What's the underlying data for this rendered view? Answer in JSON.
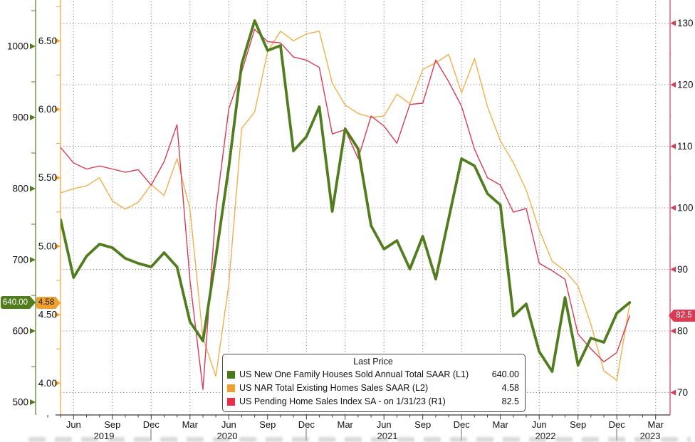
{
  "legend": {
    "title": "Last Price",
    "items": [
      {
        "label": "US New One Family Houses Sold Annual Total SAAR  (L1)",
        "value": "640.00"
      },
      {
        "label": "US NAR Total Existing Homes Sales SAAR  (L2)",
        "value": "4.58"
      },
      {
        "label": "US Pending Home Sales Index SA -  on 1/31/23  (R1)",
        "value": "82.5"
      }
    ]
  },
  "badges": {
    "l1": "640.00",
    "l2": "4.58",
    "r1": "82.5"
  },
  "colors": {
    "green": "#527d1e",
    "orange": "#f0a030",
    "orange_line": "#f2b04a",
    "red": "#d93a54",
    "grid": "#6e6e6e",
    "axis_text": "#121212"
  },
  "chart_data": {
    "type": "line",
    "title": "",
    "frequency": "monthly",
    "x_range": {
      "start": "Apr 2019",
      "end": "Jan 2023"
    },
    "x_axis": {
      "quarter_tick_labels": [
        "Jun",
        "Sep",
        "Dec",
        "Mar",
        "Jun",
        "Sep",
        "Dec",
        "Mar",
        "Jun",
        "Sep",
        "Dec",
        "Mar",
        "Jun",
        "Sep",
        "Dec",
        "Mar"
      ],
      "year_labels": [
        "2019",
        "2020",
        "2021",
        "2022",
        "2023"
      ]
    },
    "axes": {
      "L1": {
        "side": "left-outer",
        "ticks": [
          500,
          600,
          700,
          800,
          900,
          1000
        ],
        "tick_labels": [
          "500",
          "600",
          "700",
          "800",
          "900",
          "1000"
        ],
        "color": "#527d1e",
        "last_price": 640.0
      },
      "L2": {
        "side": "left-inner",
        "ticks": [
          4.0,
          4.5,
          5.0,
          5.5,
          6.0,
          6.5
        ],
        "tick_labels": [
          "4.00",
          "4.50",
          "5.00",
          "5.50",
          "6.00",
          "6.50"
        ],
        "color": "#f0a030",
        "last_price": 4.58
      },
      "R1": {
        "side": "right",
        "ticks": [
          70,
          80,
          90,
          100,
          110,
          120,
          130
        ],
        "tick_labels": [
          "70",
          "80",
          "90",
          "100",
          "110",
          "120",
          "130"
        ],
        "color": "#d93a54",
        "last_price": 82.5
      }
    },
    "grid": {
      "horizontal": "dotted at R1 ticks",
      "vertical": "dotted at quarter ticks"
    },
    "series": [
      {
        "id": "new-home-sales",
        "name": "US New One Family Houses Sold Annual Total SAAR",
        "axis": "L1",
        "color": "#527d1e",
        "last_value": "640.00",
        "values": [
          697,
          756,
          675,
          705,
          722,
          717,
          702,
          695,
          690,
          710,
          690,
          613,
          586,
          704,
          830,
          975,
          1036,
          994,
          1001,
          853,
          873,
          915,
          768,
          884,
          856,
          748,
          715,
          727,
          687,
          733,
          673,
          758,
          842,
          832,
          793,
          777,
          621,
          638,
          571,
          543,
          647,
          552,
          590,
          584,
          625,
          640
        ]
      },
      {
        "id": "existing-home-sales",
        "name": "US NAR Total Existing Homes Sales SAAR",
        "axis": "L2",
        "color": "#f2b04a",
        "last_value": "4.58",
        "values": [
          5.41,
          5.39,
          5.42,
          5.44,
          5.5,
          5.33,
          5.27,
          5.32,
          5.45,
          5.37,
          5.64,
          5.27,
          4.33,
          4.05,
          4.72,
          5.86,
          5.98,
          6.42,
          6.57,
          6.5,
          6.55,
          6.57,
          6.19,
          6.03,
          5.97,
          5.94,
          5.95,
          6.11,
          6.04,
          6.29,
          6.34,
          6.4,
          6.12,
          6.37,
          6.02,
          5.77,
          5.61,
          5.41,
          5.12,
          4.89,
          4.82,
          4.71,
          4.43,
          4.09,
          4.02,
          4.58
        ]
      },
      {
        "id": "pending-home-sales",
        "name": "US Pending Home Sales Index SA",
        "axis": "R1",
        "as_of": "1/31/23",
        "color": "#d93a54",
        "last_value": "82.5",
        "values": [
          109.3,
          109.8,
          107.3,
          106.3,
          106.8,
          106.3,
          105.8,
          106.2,
          103.7,
          107.5,
          113.5,
          88.2,
          70.5,
          99.6,
          116.1,
          122.1,
          129.0,
          127.0,
          126.8,
          124.5,
          124.0,
          122.8,
          112.0,
          112.7,
          108.0,
          114.9,
          113.3,
          110.5,
          116.8,
          117.0,
          124.0,
          120.5,
          116.5,
          109.5,
          104.9,
          103.7,
          99.3,
          99.9,
          91.0,
          89.8,
          88.4,
          79.5,
          77.1,
          75.0,
          76.5,
          82.5
        ]
      }
    ]
  }
}
